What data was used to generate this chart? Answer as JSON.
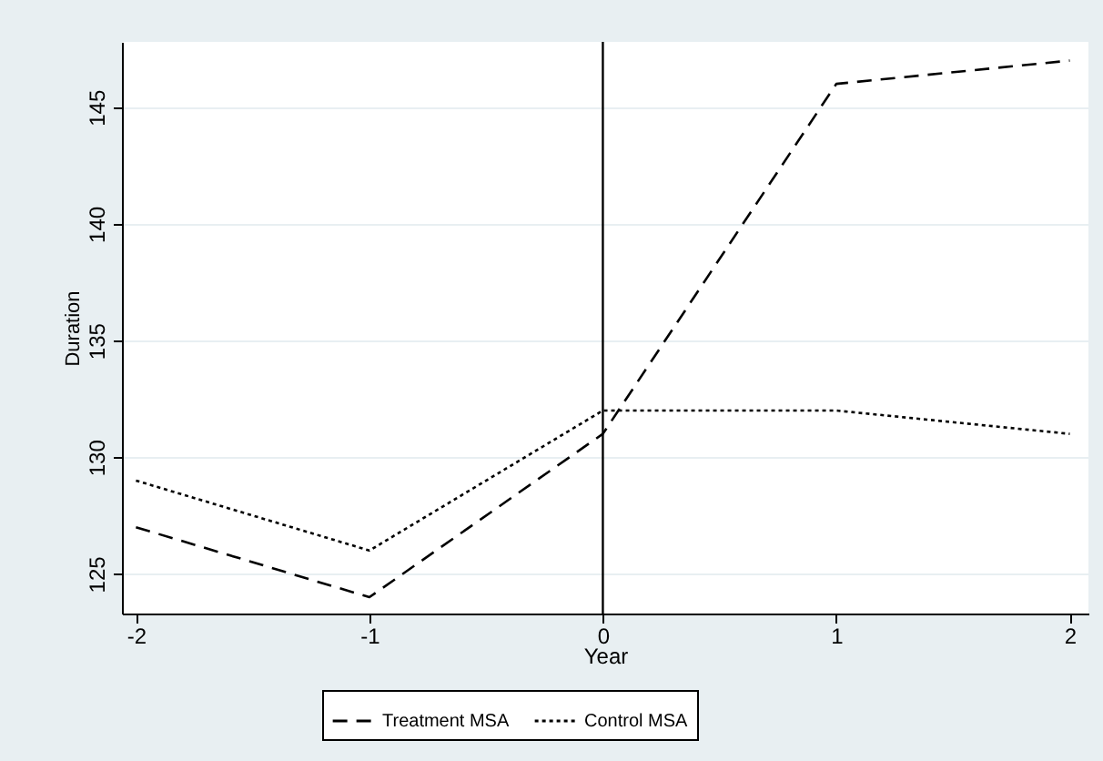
{
  "chart_data": {
    "type": "line",
    "xlabel": "Year",
    "ylabel": "Duration",
    "x": [
      -2,
      -1,
      0,
      1,
      2
    ],
    "series": [
      {
        "name": "Treatment MSA",
        "color": "#000000",
        "line_style": "dashed",
        "values": [
          127,
          124,
          131,
          146,
          147
        ]
      },
      {
        "name": "Control MSA",
        "color": "#000000",
        "line_style": "dotted",
        "values": [
          129,
          126,
          132,
          132,
          131
        ]
      }
    ],
    "xlim": [
      -2.06,
      2.08
    ],
    "xticks": [
      -2,
      -1,
      0,
      1,
      2
    ],
    "ylim": [
      123.3,
      147.8
    ],
    "yticks": [
      125,
      130,
      135,
      140,
      145
    ],
    "grid": "y",
    "legend": "bottom",
    "ref_lines": [
      {
        "axis": "x",
        "value": 0
      }
    ]
  }
}
